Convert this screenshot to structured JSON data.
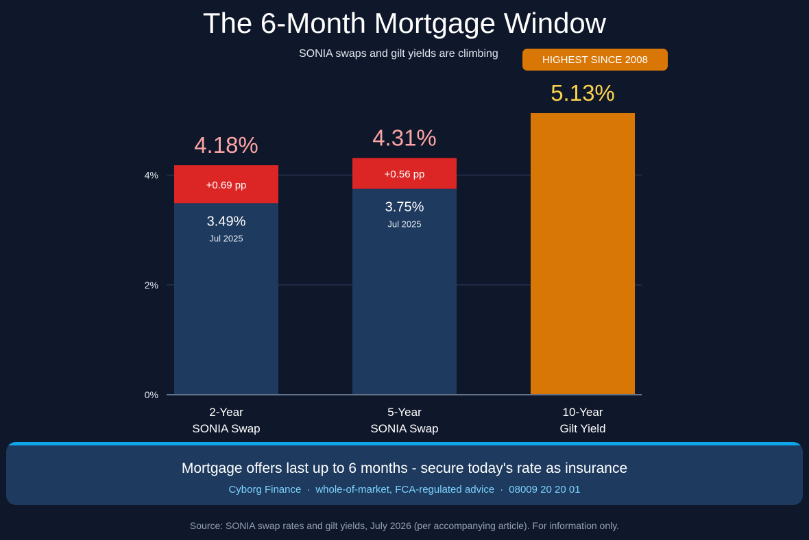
{
  "header": {
    "title": "The 6-Month Mortgage Window",
    "subtitle": "SONIA swaps and gilt yields are climbing",
    "badge": "HIGHEST SINCE 2008"
  },
  "chart_data": {
    "type": "bar",
    "stacked": true,
    "categories": [
      [
        "2-Year",
        "SONIA Swap"
      ],
      [
        "5-Year",
        "SONIA Swap"
      ],
      [
        "10-Year",
        "Gilt Yield"
      ]
    ],
    "series": [
      {
        "values": [
          3.49,
          3.75,
          5.13
        ],
        "labels": [
          "3.49%",
          "3.75%",
          ""
        ],
        "sublabels": [
          "Jul 2025",
          "Jul 2025",
          ""
        ]
      },
      {
        "values": [
          0.69,
          0.56,
          0
        ],
        "labels": [
          "+0.69 pp",
          "+0.56 pp",
          ""
        ]
      }
    ],
    "totals": [
      4.18,
      4.31,
      5.13
    ],
    "total_labels": [
      "4.18%",
      "4.31%",
      "5.13%"
    ],
    "y_ticks": [
      "0%",
      "2%",
      "4%"
    ],
    "y_tick_values": [
      0,
      2,
      4
    ],
    "ylim": [
      0,
      5.13
    ],
    "grid": true,
    "colors": {
      "base": "#1e3a5f",
      "increase": "#dc2626",
      "highlight": "#d97706",
      "total_label": "#fca5a5",
      "highlight_label": "#fcd34d",
      "grid": "#253350",
      "axis": "#64748b"
    }
  },
  "banner": {
    "headline": "Mortgage offers last up to 6 months - secure today's rate as insurance",
    "brand": "Cyborg Finance",
    "service": "whole-of-market, FCA-regulated advice",
    "phone": "08009 20 20 01",
    "separator": "·"
  },
  "footer": {
    "source": "Source: SONIA swap rates and gilt yields, July 2026 (per accompanying article). For information only."
  }
}
